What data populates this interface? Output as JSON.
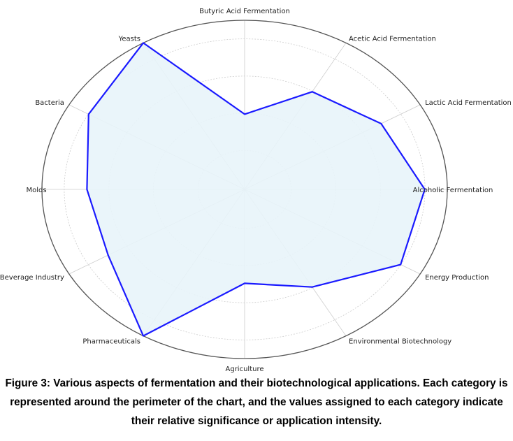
{
  "chart_data": {
    "type": "radar",
    "categories": [
      "Alcoholic Fermentation",
      "Lactic Acid Fermentation",
      "Acetic Acid Fermentation",
      "Butyric Acid Fermentation",
      "Yeasts",
      "Bacteria",
      "Molds",
      "Food and Beverage Industry",
      "Pharmaceuticals",
      "Agriculture",
      "Environmental Biotechnology",
      "Energy Production"
    ],
    "series": [
      {
        "values": [
          8,
          7,
          6,
          4,
          9,
          8,
          7,
          7,
          9,
          5,
          6,
          8
        ]
      }
    ],
    "rlim": [
      0,
      9
    ],
    "grid": true,
    "colors": {
      "line": "#1a1aff",
      "fill": "#e8f4fa",
      "outer_ring": "#555555",
      "grid": "#cccccc"
    }
  },
  "caption": "Figure 3: Various aspects of fermentation and their biotechnological applications. Each category is represented around the perimeter of the chart, and the values assigned to each category indicate their relative significance or application intensity."
}
